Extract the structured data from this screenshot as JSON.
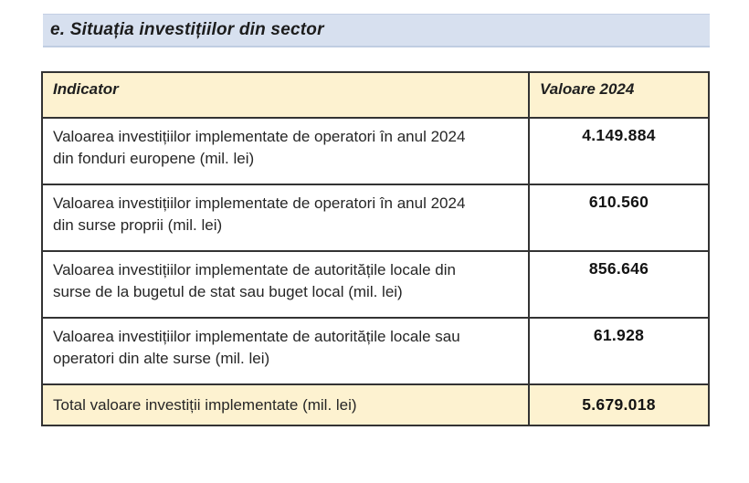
{
  "heading": {
    "text": "e. Situația investițiilor din sector"
  },
  "table": {
    "header": {
      "indicator": "Indicator",
      "value": "Valoare 2024"
    },
    "rows": [
      {
        "indicator": "Valoarea investițiilor implementate de operatori în anul 2024 din fonduri europene (mil. lei)",
        "value": "4.149.884"
      },
      {
        "indicator": "Valoarea investițiilor implementate de operatori în anul 2024 din surse proprii (mil. lei)",
        "value": "610.560"
      },
      {
        "indicator": "Valoarea investițiilor implementate de autoritățile locale din surse de la bugetul de stat sau buget local (mil. lei)",
        "value": "856.646"
      },
      {
        "indicator": "Valoarea investițiilor implementate de autoritățile locale sau operatori  din alte surse (mil. lei)",
        "value": "61.928"
      }
    ],
    "total": {
      "indicator": "Total valoare investiții implementate (mil. lei)",
      "value": "5.679.018"
    }
  },
  "colors": {
    "heading_bar_bg": "#d7e0ef",
    "table_header_bg": "#fdf2d0",
    "total_row_bg": "#fdf2d0",
    "table_border": "#333333",
    "text": "#262626"
  }
}
